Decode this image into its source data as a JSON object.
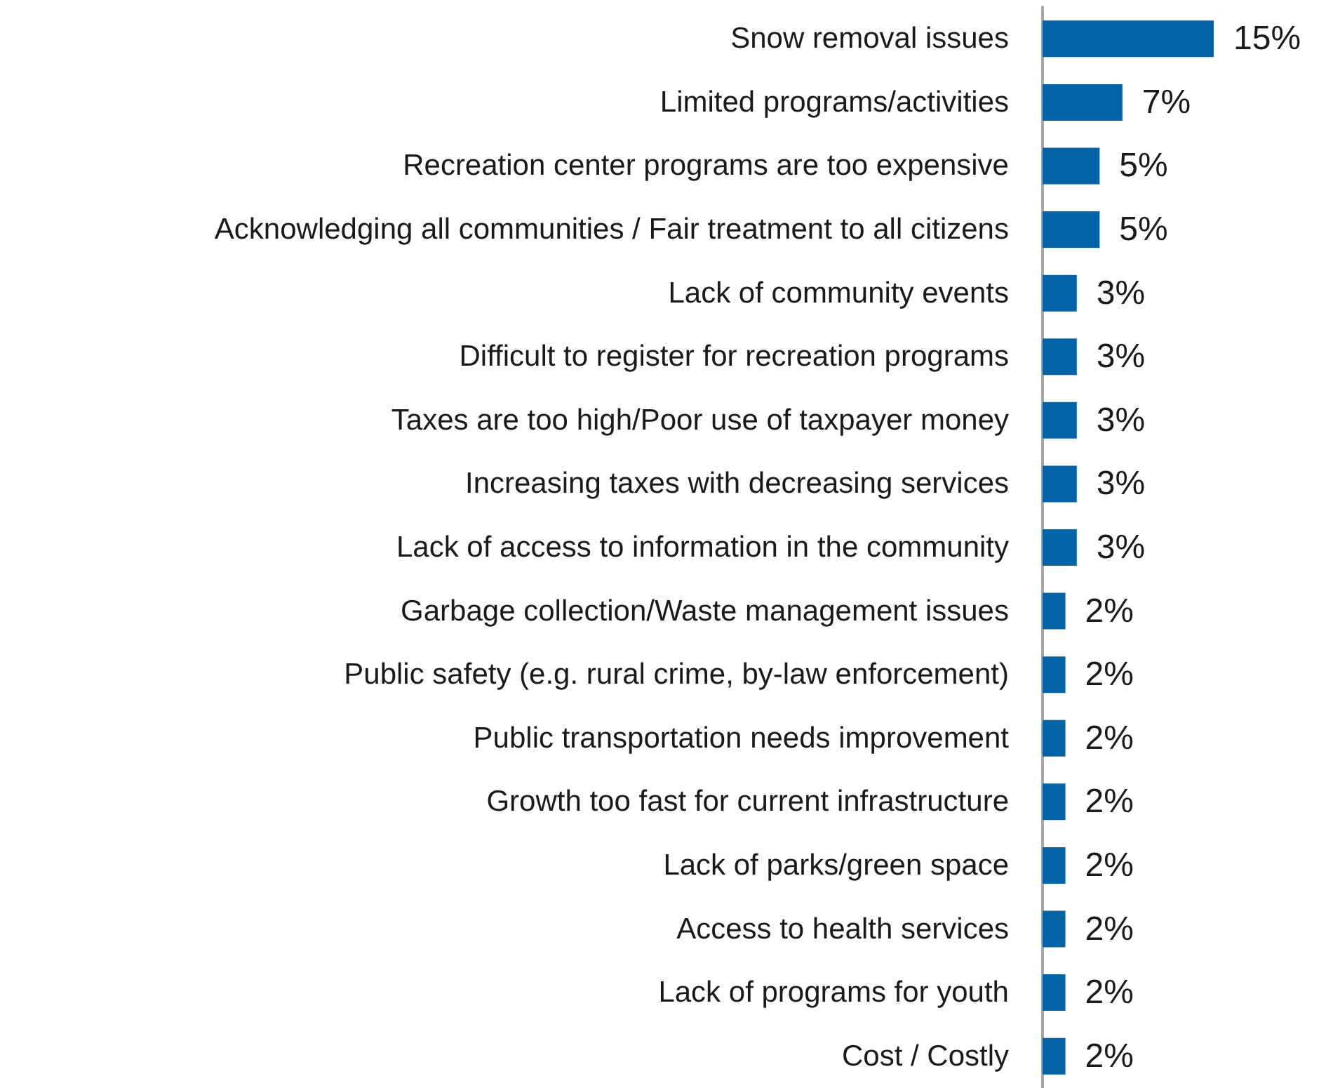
{
  "chart_data": {
    "type": "bar",
    "orientation": "horizontal",
    "categories": [
      "Snow removal issues",
      "Limited programs/activities",
      "Recreation center programs are too expensive",
      "Acknowledging all communities / Fair treatment to all citizens",
      "Lack of community events",
      "Difficult to register for recreation programs",
      "Taxes are too high/Poor use of taxpayer money",
      "Increasing taxes with decreasing services",
      "Lack of access to information in the community",
      "Garbage collection/Waste management issues",
      "Public safety (e.g. rural crime, by-law enforcement)",
      "Public transportation needs improvement",
      "Growth too fast for current infrastructure",
      "Lack of parks/green space",
      "Access to health services",
      "Lack of programs for youth",
      "Cost / Costly"
    ],
    "values": [
      15,
      7,
      5,
      5,
      3,
      3,
      3,
      3,
      3,
      2,
      2,
      2,
      2,
      2,
      2,
      2,
      2
    ],
    "value_labels": [
      "15%",
      "7%",
      "5%",
      "5%",
      "3%",
      "3%",
      "3%",
      "3%",
      "3%",
      "2%",
      "2%",
      "2%",
      "2%",
      "2%",
      "2%",
      "2%",
      "2%"
    ],
    "color": "#0563a8"
  }
}
